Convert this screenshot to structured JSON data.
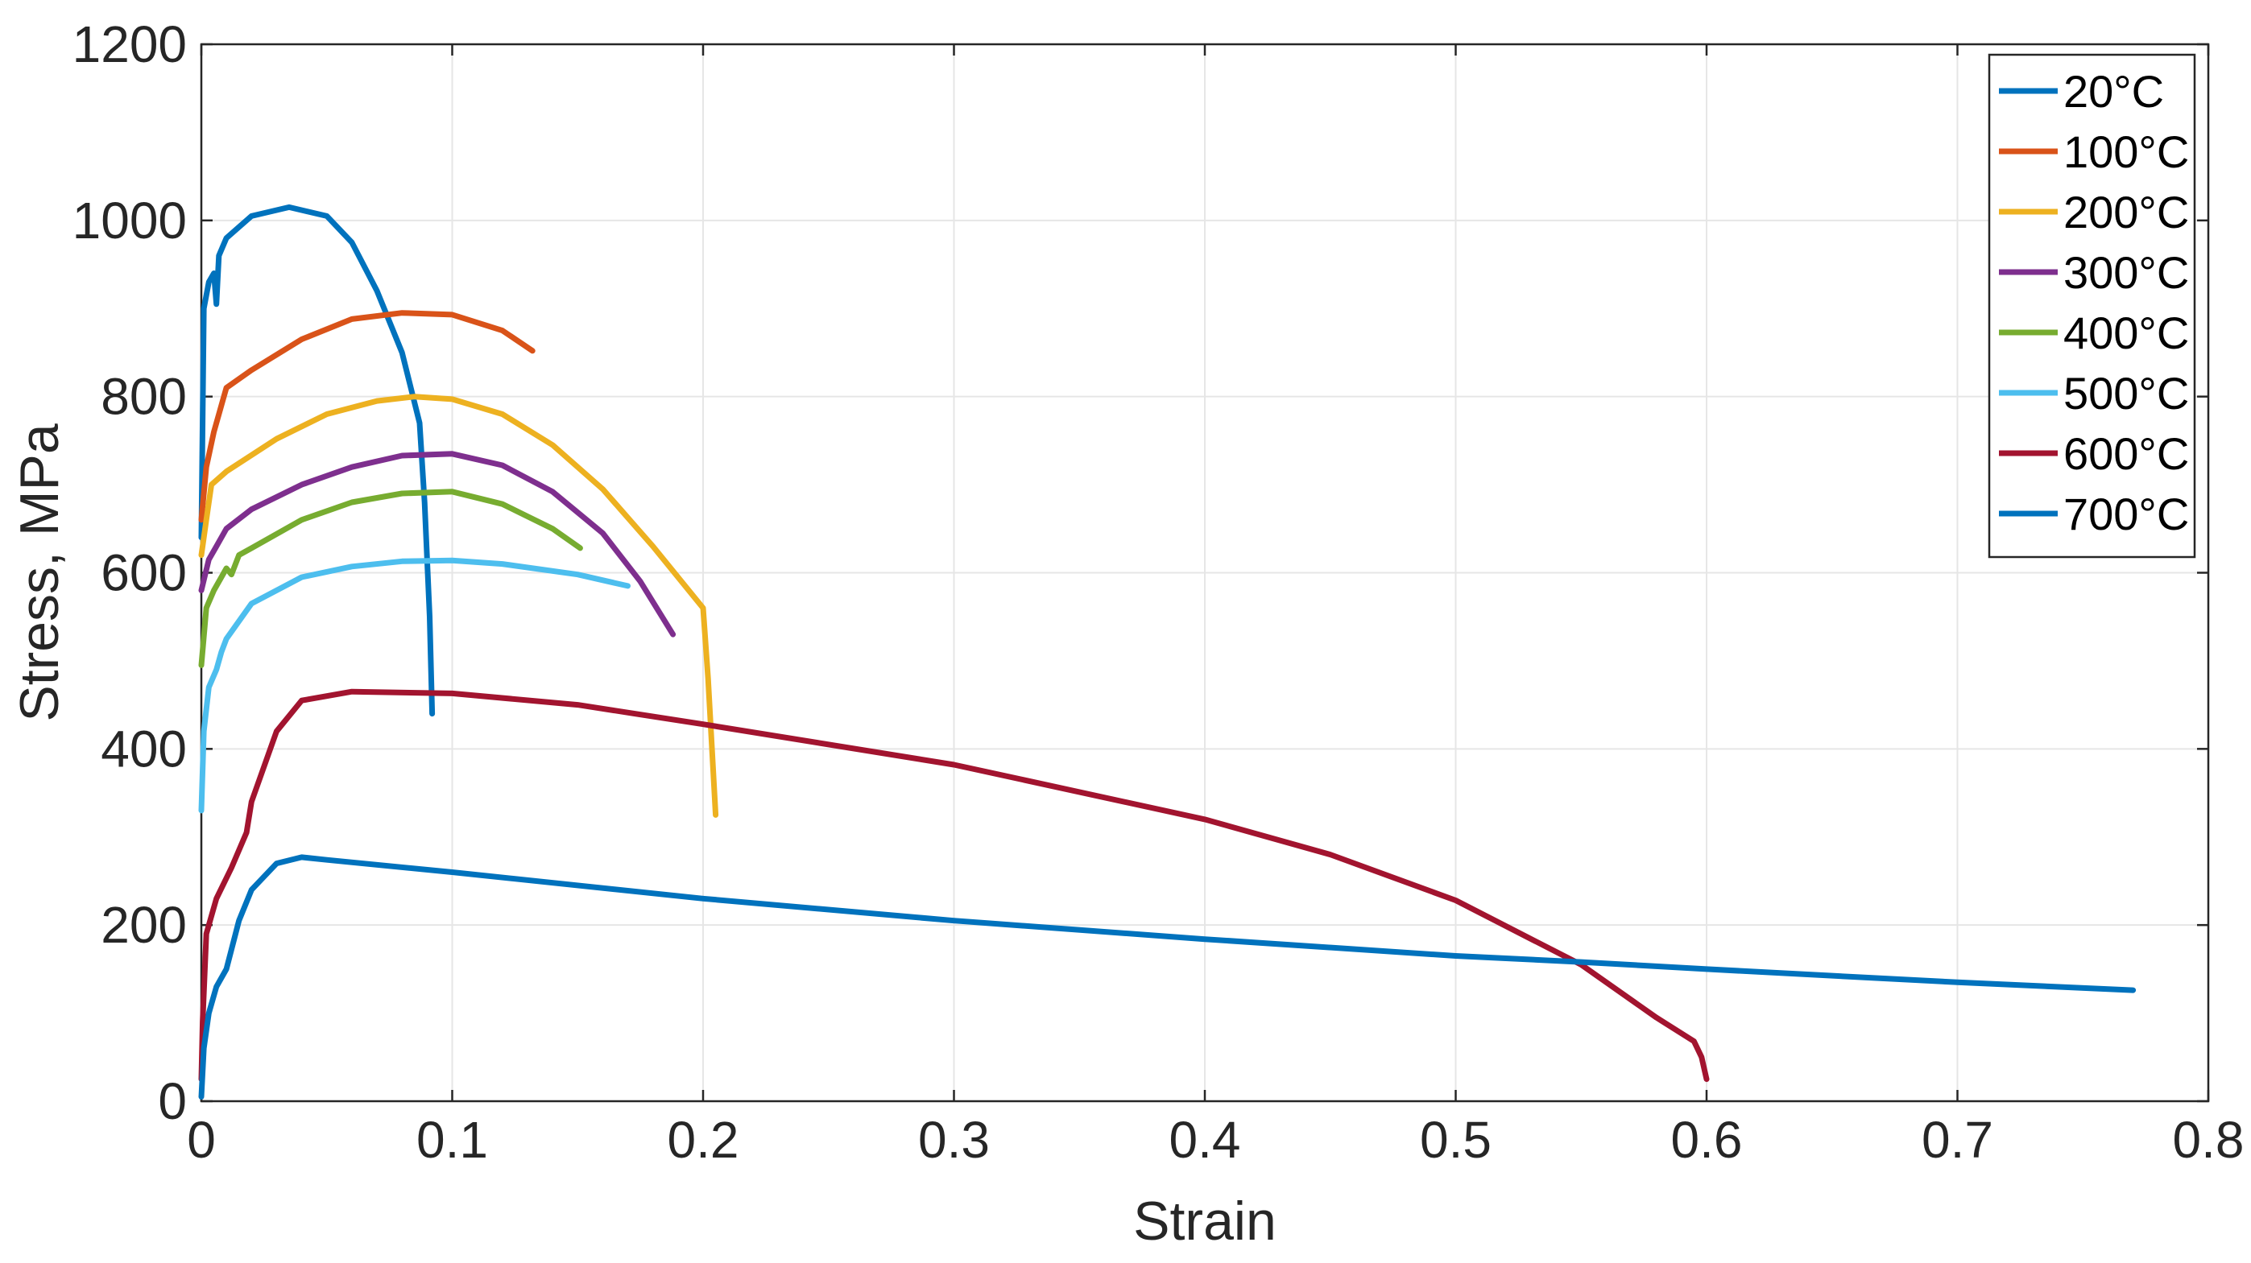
{
  "chart_data": {
    "type": "line",
    "title": "",
    "xlabel": "Strain",
    "ylabel": "Stress, MPa",
    "xlim": [
      0,
      0.8
    ],
    "ylim": [
      0,
      1200
    ],
    "xticks": [
      0,
      0.1,
      0.2,
      0.3,
      0.4,
      0.5,
      0.6,
      0.7,
      0.8
    ],
    "xtick_labels": [
      "0",
      "0.1",
      "0.2",
      "0.3",
      "0.4",
      "0.5",
      "0.6",
      "0.7",
      "0.8"
    ],
    "yticks": [
      0,
      200,
      400,
      600,
      800,
      1000,
      1200
    ],
    "ytick_labels": [
      "0",
      "200",
      "400",
      "600",
      "800",
      "1000",
      "1200"
    ],
    "grid": true,
    "legend_position": "top-right",
    "series": [
      {
        "name": "20°C",
        "color": "#0072BD",
        "points": [
          [
            0,
            640
          ],
          [
            0.001,
            900
          ],
          [
            0.003,
            930
          ],
          [
            0.005,
            940
          ],
          [
            0.006,
            905
          ],
          [
            0.007,
            960
          ],
          [
            0.01,
            980
          ],
          [
            0.02,
            1005
          ],
          [
            0.035,
            1015
          ],
          [
            0.05,
            1005
          ],
          [
            0.06,
            975
          ],
          [
            0.07,
            920
          ],
          [
            0.08,
            850
          ],
          [
            0.087,
            770
          ],
          [
            0.089,
            680
          ],
          [
            0.091,
            550
          ],
          [
            0.092,
            440
          ]
        ]
      },
      {
        "name": "100°C",
        "color": "#D95319",
        "points": [
          [
            0,
            660
          ],
          [
            0.002,
            720
          ],
          [
            0.005,
            760
          ],
          [
            0.008,
            790
          ],
          [
            0.01,
            810
          ],
          [
            0.02,
            830
          ],
          [
            0.04,
            865
          ],
          [
            0.06,
            888
          ],
          [
            0.08,
            895
          ],
          [
            0.1,
            893
          ],
          [
            0.12,
            875
          ],
          [
            0.132,
            852
          ]
        ]
      },
      {
        "name": "200°C",
        "color": "#EDB120",
        "points": [
          [
            0,
            620
          ],
          [
            0.002,
            660
          ],
          [
            0.004,
            700
          ],
          [
            0.01,
            715
          ],
          [
            0.03,
            752
          ],
          [
            0.05,
            780
          ],
          [
            0.07,
            795
          ],
          [
            0.085,
            800
          ],
          [
            0.1,
            797
          ],
          [
            0.12,
            780
          ],
          [
            0.14,
            745
          ],
          [
            0.16,
            695
          ],
          [
            0.18,
            630
          ],
          [
            0.2,
            560
          ],
          [
            0.202,
            480
          ],
          [
            0.205,
            325
          ]
        ]
      },
      {
        "name": "300°C",
        "color": "#7E2F8E",
        "points": [
          [
            0,
            580
          ],
          [
            0.003,
            615
          ],
          [
            0.006,
            630
          ],
          [
            0.01,
            650
          ],
          [
            0.02,
            672
          ],
          [
            0.04,
            700
          ],
          [
            0.06,
            720
          ],
          [
            0.08,
            733
          ],
          [
            0.1,
            735
          ],
          [
            0.12,
            722
          ],
          [
            0.14,
            692
          ],
          [
            0.16,
            645
          ],
          [
            0.175,
            590
          ],
          [
            0.188,
            530
          ]
        ]
      },
      {
        "name": "400°C",
        "color": "#77AC30",
        "points": [
          [
            0,
            495
          ],
          [
            0.002,
            560
          ],
          [
            0.005,
            580
          ],
          [
            0.008,
            595
          ],
          [
            0.01,
            605
          ],
          [
            0.012,
            598
          ],
          [
            0.015,
            620
          ],
          [
            0.02,
            628
          ],
          [
            0.04,
            660
          ],
          [
            0.06,
            680
          ],
          [
            0.08,
            690
          ],
          [
            0.1,
            692
          ],
          [
            0.12,
            678
          ],
          [
            0.14,
            650
          ],
          [
            0.151,
            628
          ]
        ]
      },
      {
        "name": "500°C",
        "color": "#4DBEEE",
        "points": [
          [
            0,
            330
          ],
          [
            0.001,
            420
          ],
          [
            0.003,
            470
          ],
          [
            0.006,
            490
          ],
          [
            0.008,
            510
          ],
          [
            0.01,
            525
          ],
          [
            0.02,
            565
          ],
          [
            0.04,
            595
          ],
          [
            0.06,
            607
          ],
          [
            0.08,
            613
          ],
          [
            0.1,
            614
          ],
          [
            0.12,
            610
          ],
          [
            0.15,
            598
          ],
          [
            0.17,
            585
          ]
        ]
      },
      {
        "name": "600°C",
        "color": "#A2142F",
        "points": [
          [
            0,
            25
          ],
          [
            0.0005,
            90
          ],
          [
            0.002,
            190
          ],
          [
            0.006,
            230
          ],
          [
            0.012,
            265
          ],
          [
            0.018,
            305
          ],
          [
            0.02,
            340
          ],
          [
            0.03,
            420
          ],
          [
            0.04,
            455
          ],
          [
            0.06,
            465
          ],
          [
            0.1,
            463
          ],
          [
            0.15,
            450
          ],
          [
            0.2,
            428
          ],
          [
            0.3,
            382
          ],
          [
            0.4,
            320
          ],
          [
            0.45,
            280
          ],
          [
            0.5,
            228
          ],
          [
            0.55,
            155
          ],
          [
            0.58,
            95
          ],
          [
            0.595,
            68
          ],
          [
            0.598,
            50
          ],
          [
            0.6,
            25
          ]
        ]
      },
      {
        "name": "700°C",
        "color": "#0072BD",
        "points": [
          [
            0,
            5
          ],
          [
            0.001,
            60
          ],
          [
            0.003,
            100
          ],
          [
            0.006,
            130
          ],
          [
            0.01,
            150
          ],
          [
            0.015,
            205
          ],
          [
            0.02,
            240
          ],
          [
            0.03,
            270
          ],
          [
            0.04,
            277
          ],
          [
            0.05,
            274
          ],
          [
            0.1,
            260
          ],
          [
            0.2,
            230
          ],
          [
            0.3,
            205
          ],
          [
            0.4,
            184
          ],
          [
            0.5,
            165
          ],
          [
            0.55,
            158
          ],
          [
            0.6,
            150
          ],
          [
            0.7,
            135
          ],
          [
            0.77,
            126
          ]
        ]
      }
    ]
  }
}
